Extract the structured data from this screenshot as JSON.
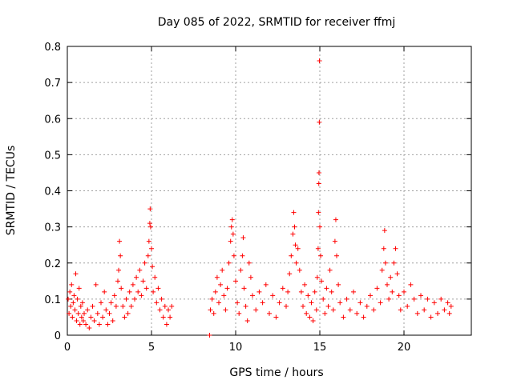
{
  "chart_data": {
    "type": "scatter",
    "title": "Day 085 of 2022, SRMTID for receiver ffmj",
    "xlabel": "GPS time / hours",
    "ylabel": "SRMTID / TECUs",
    "xlim": [
      0,
      24
    ],
    "ylim": [
      0,
      0.8
    ],
    "xticks": [
      0,
      5,
      10,
      15,
      20
    ],
    "yticks": [
      0,
      0.1,
      0.2,
      0.3,
      0.4,
      0.5,
      0.6,
      0.7,
      0.8
    ],
    "grid": true,
    "marker": "+",
    "series_color": "#ff0000",
    "points": [
      [
        0.05,
        0.1
      ],
      [
        0.1,
        0.06
      ],
      [
        0.15,
        0.12
      ],
      [
        0.2,
        0.08
      ],
      [
        0.25,
        0.14
      ],
      [
        0.3,
        0.05
      ],
      [
        0.35,
        0.09
      ],
      [
        0.4,
        0.11
      ],
      [
        0.45,
        0.07
      ],
      [
        0.5,
        0.17
      ],
      [
        0.55,
        0.04
      ],
      [
        0.6,
        0.1
      ],
      [
        0.65,
        0.06
      ],
      [
        0.7,
        0.13
      ],
      [
        0.75,
        0.03
      ],
      [
        0.8,
        0.08
      ],
      [
        0.85,
        0.05
      ],
      [
        0.9,
        0.09
      ],
      [
        0.95,
        0.04
      ],
      [
        1.0,
        0.06
      ],
      [
        1.1,
        0.03
      ],
      [
        1.2,
        0.07
      ],
      [
        1.3,
        0.02
      ],
      [
        1.4,
        0.05
      ],
      [
        1.5,
        0.08
      ],
      [
        1.6,
        0.04
      ],
      [
        1.7,
        0.14
      ],
      [
        1.8,
        0.06
      ],
      [
        1.9,
        0.03
      ],
      [
        2.0,
        0.09
      ],
      [
        2.1,
        0.05
      ],
      [
        2.2,
        0.12
      ],
      [
        2.3,
        0.07
      ],
      [
        2.4,
        0.03
      ],
      [
        2.5,
        0.06
      ],
      [
        2.6,
        0.09
      ],
      [
        2.7,
        0.04
      ],
      [
        2.8,
        0.11
      ],
      [
        2.9,
        0.08
      ],
      [
        3.0,
        0.15
      ],
      [
        3.05,
        0.18
      ],
      [
        3.1,
        0.26
      ],
      [
        3.15,
        0.22
      ],
      [
        3.2,
        0.13
      ],
      [
        3.3,
        0.08
      ],
      [
        3.4,
        0.05
      ],
      [
        3.5,
        0.1
      ],
      [
        3.6,
        0.06
      ],
      [
        3.7,
        0.12
      ],
      [
        3.8,
        0.08
      ],
      [
        3.9,
        0.14
      ],
      [
        4.0,
        0.1
      ],
      [
        4.1,
        0.16
      ],
      [
        4.2,
        0.12
      ],
      [
        4.3,
        0.18
      ],
      [
        4.4,
        0.11
      ],
      [
        4.5,
        0.15
      ],
      [
        4.6,
        0.2
      ],
      [
        4.7,
        0.13
      ],
      [
        4.8,
        0.22
      ],
      [
        4.85,
        0.26
      ],
      [
        4.9,
        0.31
      ],
      [
        4.92,
        0.35
      ],
      [
        4.95,
        0.3
      ],
      [
        5.0,
        0.24
      ],
      [
        5.05,
        0.19
      ],
      [
        5.1,
        0.12
      ],
      [
        5.2,
        0.16
      ],
      [
        5.3,
        0.09
      ],
      [
        5.4,
        0.13
      ],
      [
        5.5,
        0.07
      ],
      [
        5.6,
        0.1
      ],
      [
        5.7,
        0.05
      ],
      [
        5.8,
        0.08
      ],
      [
        5.9,
        0.03
      ],
      [
        6.0,
        0.07
      ],
      [
        6.1,
        0.05
      ],
      [
        6.2,
        0.08
      ],
      [
        8.45,
        0.0
      ],
      [
        8.5,
        0.07
      ],
      [
        8.6,
        0.1
      ],
      [
        8.7,
        0.06
      ],
      [
        8.8,
        0.12
      ],
      [
        8.9,
        0.16
      ],
      [
        9.0,
        0.09
      ],
      [
        9.1,
        0.14
      ],
      [
        9.2,
        0.18
      ],
      [
        9.3,
        0.11
      ],
      [
        9.4,
        0.07
      ],
      [
        9.5,
        0.13
      ],
      [
        9.6,
        0.2
      ],
      [
        9.7,
        0.26
      ],
      [
        9.75,
        0.3
      ],
      [
        9.8,
        0.32
      ],
      [
        9.85,
        0.28
      ],
      [
        9.9,
        0.22
      ],
      [
        10.0,
        0.15
      ],
      [
        10.1,
        0.09
      ],
      [
        10.2,
        0.06
      ],
      [
        10.3,
        0.18
      ],
      [
        10.4,
        0.22
      ],
      [
        10.45,
        0.27
      ],
      [
        10.5,
        0.13
      ],
      [
        10.6,
        0.08
      ],
      [
        10.7,
        0.04
      ],
      [
        10.8,
        0.2
      ],
      [
        10.9,
        0.16
      ],
      [
        11.0,
        0.11
      ],
      [
        11.2,
        0.07
      ],
      [
        11.4,
        0.12
      ],
      [
        11.6,
        0.09
      ],
      [
        11.8,
        0.14
      ],
      [
        12.0,
        0.06
      ],
      [
        12.2,
        0.11
      ],
      [
        12.4,
        0.05
      ],
      [
        12.6,
        0.09
      ],
      [
        12.8,
        0.13
      ],
      [
        13.0,
        0.08
      ],
      [
        13.1,
        0.12
      ],
      [
        13.2,
        0.17
      ],
      [
        13.3,
        0.22
      ],
      [
        13.4,
        0.28
      ],
      [
        13.45,
        0.34
      ],
      [
        13.5,
        0.3
      ],
      [
        13.55,
        0.25
      ],
      [
        13.6,
        0.2
      ],
      [
        13.7,
        0.24
      ],
      [
        13.8,
        0.18
      ],
      [
        13.9,
        0.12
      ],
      [
        14.0,
        0.08
      ],
      [
        14.1,
        0.14
      ],
      [
        14.2,
        0.06
      ],
      [
        14.3,
        0.11
      ],
      [
        14.4,
        0.05
      ],
      [
        14.5,
        0.09
      ],
      [
        14.6,
        0.04
      ],
      [
        14.7,
        0.12
      ],
      [
        14.8,
        0.07
      ],
      [
        14.85,
        0.16
      ],
      [
        14.9,
        0.24
      ],
      [
        14.92,
        0.34
      ],
      [
        14.94,
        0.42
      ],
      [
        14.95,
        0.45
      ],
      [
        14.97,
        0.59
      ],
      [
        14.98,
        0.76
      ],
      [
        15.0,
        0.3
      ],
      [
        15.05,
        0.22
      ],
      [
        15.1,
        0.15
      ],
      [
        15.2,
        0.1
      ],
      [
        15.3,
        0.06
      ],
      [
        15.4,
        0.13
      ],
      [
        15.5,
        0.08
      ],
      [
        15.6,
        0.18
      ],
      [
        15.7,
        0.12
      ],
      [
        15.8,
        0.07
      ],
      [
        15.9,
        0.26
      ],
      [
        15.95,
        0.32
      ],
      [
        16.0,
        0.22
      ],
      [
        16.1,
        0.14
      ],
      [
        16.2,
        0.09
      ],
      [
        16.4,
        0.05
      ],
      [
        16.6,
        0.1
      ],
      [
        16.8,
        0.07
      ],
      [
        17.0,
        0.12
      ],
      [
        17.2,
        0.06
      ],
      [
        17.4,
        0.09
      ],
      [
        17.6,
        0.05
      ],
      [
        17.8,
        0.08
      ],
      [
        18.0,
        0.11
      ],
      [
        18.2,
        0.07
      ],
      [
        18.4,
        0.13
      ],
      [
        18.6,
        0.09
      ],
      [
        18.7,
        0.18
      ],
      [
        18.8,
        0.24
      ],
      [
        18.85,
        0.29
      ],
      [
        18.9,
        0.2
      ],
      [
        19.0,
        0.14
      ],
      [
        19.1,
        0.1
      ],
      [
        19.2,
        0.16
      ],
      [
        19.3,
        0.12
      ],
      [
        19.4,
        0.2
      ],
      [
        19.5,
        0.24
      ],
      [
        19.6,
        0.17
      ],
      [
        19.7,
        0.11
      ],
      [
        19.8,
        0.07
      ],
      [
        20.0,
        0.12
      ],
      [
        20.2,
        0.08
      ],
      [
        20.4,
        0.14
      ],
      [
        20.6,
        0.1
      ],
      [
        20.8,
        0.06
      ],
      [
        21.0,
        0.11
      ],
      [
        21.2,
        0.07
      ],
      [
        21.4,
        0.1
      ],
      [
        21.6,
        0.05
      ],
      [
        21.8,
        0.09
      ],
      [
        22.0,
        0.06
      ],
      [
        22.2,
        0.1
      ],
      [
        22.4,
        0.07
      ],
      [
        22.6,
        0.09
      ],
      [
        22.7,
        0.06
      ],
      [
        22.8,
        0.08
      ]
    ]
  }
}
